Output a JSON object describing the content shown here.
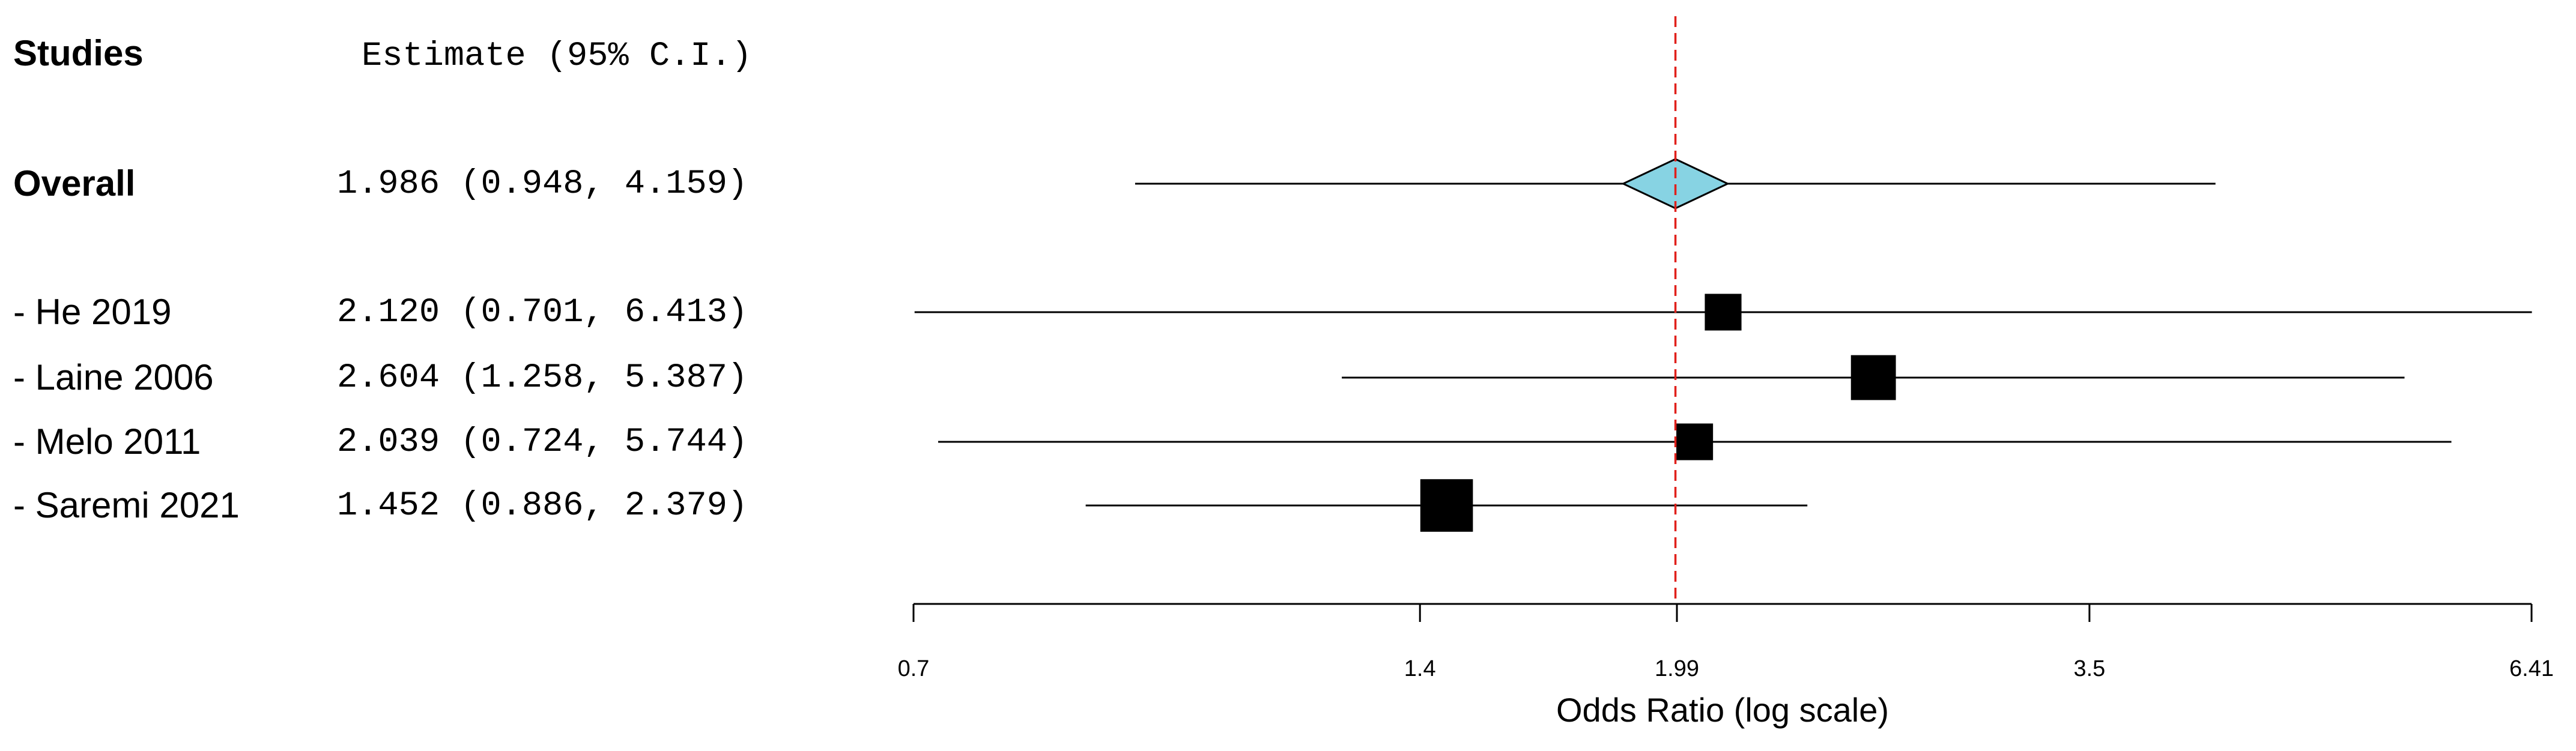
{
  "chart_data": {
    "type": "forest",
    "header": {
      "studies": "Studies",
      "estimate": "Estimate (95% C.I.)"
    },
    "overall": {
      "label": "Overall",
      "ci_label": "1.986 (0.948, 4.159)",
      "estimate": 1.986,
      "lower": 0.948,
      "upper": 4.159,
      "color": "#87d3e3"
    },
    "studies": [
      {
        "label": "- He 2019",
        "ci_label": "2.120 (0.701, 6.413)",
        "estimate": 2.12,
        "lower": 0.701,
        "upper": 6.413,
        "weight": 18
      },
      {
        "label": "- Laine 2006",
        "ci_label": "2.604 (1.258, 5.387)",
        "estimate": 2.604,
        "lower": 1.258,
        "upper": 5.387,
        "weight": 27
      },
      {
        "label": "- Melo 2011",
        "ci_label": "2.039 (0.724, 5.744)",
        "estimate": 2.039,
        "lower": 0.724,
        "upper": 5.744,
        "weight": 18
      },
      {
        "label": "- Saremi 2021",
        "ci_label": "1.452 (0.886, 2.379)",
        "estimate": 1.452,
        "lower": 0.886,
        "upper": 2.379,
        "weight": 37
      }
    ],
    "marker_color": "#000000",
    "reference_color": "#e0201b",
    "xlabel": "Odds Ratio (log scale)",
    "xscale": "log",
    "xlim": [
      0.7,
      6.41
    ],
    "xticks": [
      0.7,
      1.4,
      1.99,
      3.5,
      6.41
    ]
  }
}
